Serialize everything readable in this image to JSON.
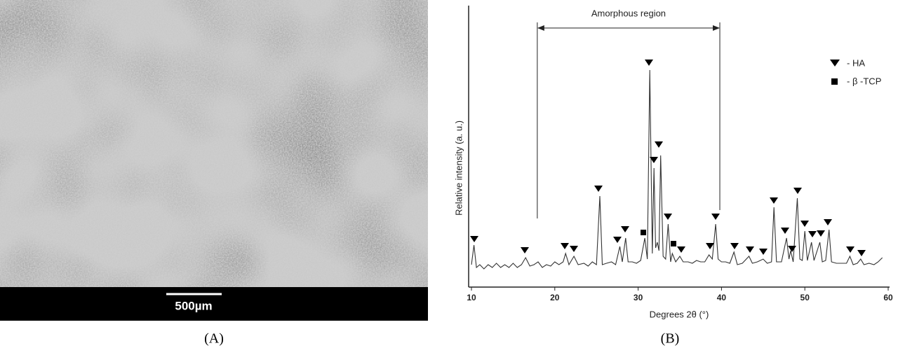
{
  "micrograph": {
    "scale_bar": "500µm"
  },
  "panel_labels": [
    "(A)",
    "(B)"
  ],
  "chart_data": {
    "type": "line",
    "xlabel": "Degrees 2θ (°)",
    "ylabel": "Relative intensity (a. u.)",
    "xlim": [
      10,
      60
    ],
    "xticks": [
      10,
      20,
      30,
      40,
      50,
      60
    ],
    "ylim": [
      0,
      100
    ],
    "amorphous_region": {
      "label": "Amorphous region",
      "x": [
        17.9,
        39.8
      ]
    },
    "legend": [
      "- HA",
      "- β -TCP"
    ],
    "series": [
      {
        "color": "#333333",
        "x": [
          10,
          10.3,
          10.6,
          11,
          11.5,
          12,
          12.5,
          13,
          13.5,
          14,
          14.5,
          15,
          15.5,
          16,
          16.5,
          17,
          17.5,
          18,
          18.5,
          19,
          19.5,
          20,
          20.5,
          21,
          21.3,
          21.7,
          22.3,
          22.8,
          23.5,
          24,
          24.5,
          25,
          25.4,
          25.7,
          26.2,
          26.8,
          27.3,
          27.8,
          28.1,
          28.5,
          28.8,
          29.3,
          29.8,
          30.3,
          30.8,
          31.1,
          31.4,
          31.7,
          31.9,
          32.1,
          32.3,
          32.5,
          32.7,
          33,
          33.3,
          33.6,
          33.9,
          34.1,
          34.5,
          35,
          35.4,
          36,
          36.5,
          37,
          37.5,
          38,
          38.5,
          38.9,
          39.3,
          39.6,
          40,
          40.5,
          41,
          41.5,
          41.9,
          42.5,
          43.3,
          43.7,
          44.3,
          45,
          45.5,
          46,
          46.3,
          46.6,
          47.2,
          47.8,
          48.1,
          48.3,
          48.6,
          49.1,
          49.4,
          49.7,
          50,
          50.3,
          50.8,
          51.1,
          51.8,
          52.1,
          52.5,
          52.9,
          53.2,
          53.8,
          54.5,
          55,
          55.4,
          55.8,
          56.3,
          56.7,
          57.1,
          57.7,
          58.3,
          58.8,
          59.3
        ],
        "values": [
          8,
          15,
          7,
          8,
          6.5,
          8,
          7,
          8.5,
          7,
          8,
          7,
          8.5,
          7,
          8,
          10.5,
          7.5,
          8,
          9,
          7,
          8,
          7.5,
          9,
          8,
          9,
          12,
          8,
          11,
          8,
          8.5,
          7.5,
          9,
          8,
          32.5,
          8,
          8.5,
          9,
          8,
          14.5,
          9,
          17.5,
          9,
          9,
          8.5,
          9.5,
          17.5,
          10,
          77.5,
          12,
          42.5,
          14,
          16,
          13,
          47,
          11,
          10,
          22.5,
          9,
          12,
          9,
          11,
          9,
          9,
          8.5,
          9.5,
          9,
          9,
          11.5,
          10,
          22.5,
          10,
          9,
          9,
          8.5,
          12.5,
          8,
          8.5,
          11,
          8.5,
          9,
          10,
          8.5,
          9,
          28.5,
          9,
          9,
          17.5,
          10,
          13,
          9,
          31.75,
          10,
          9.5,
          20,
          9.5,
          16,
          9.5,
          16,
          9,
          9.5,
          20.5,
          9,
          8.5,
          8.5,
          8.5,
          11,
          8,
          8.5,
          10,
          8,
          8.5,
          8,
          9,
          10.5
        ]
      }
    ]
  }
}
